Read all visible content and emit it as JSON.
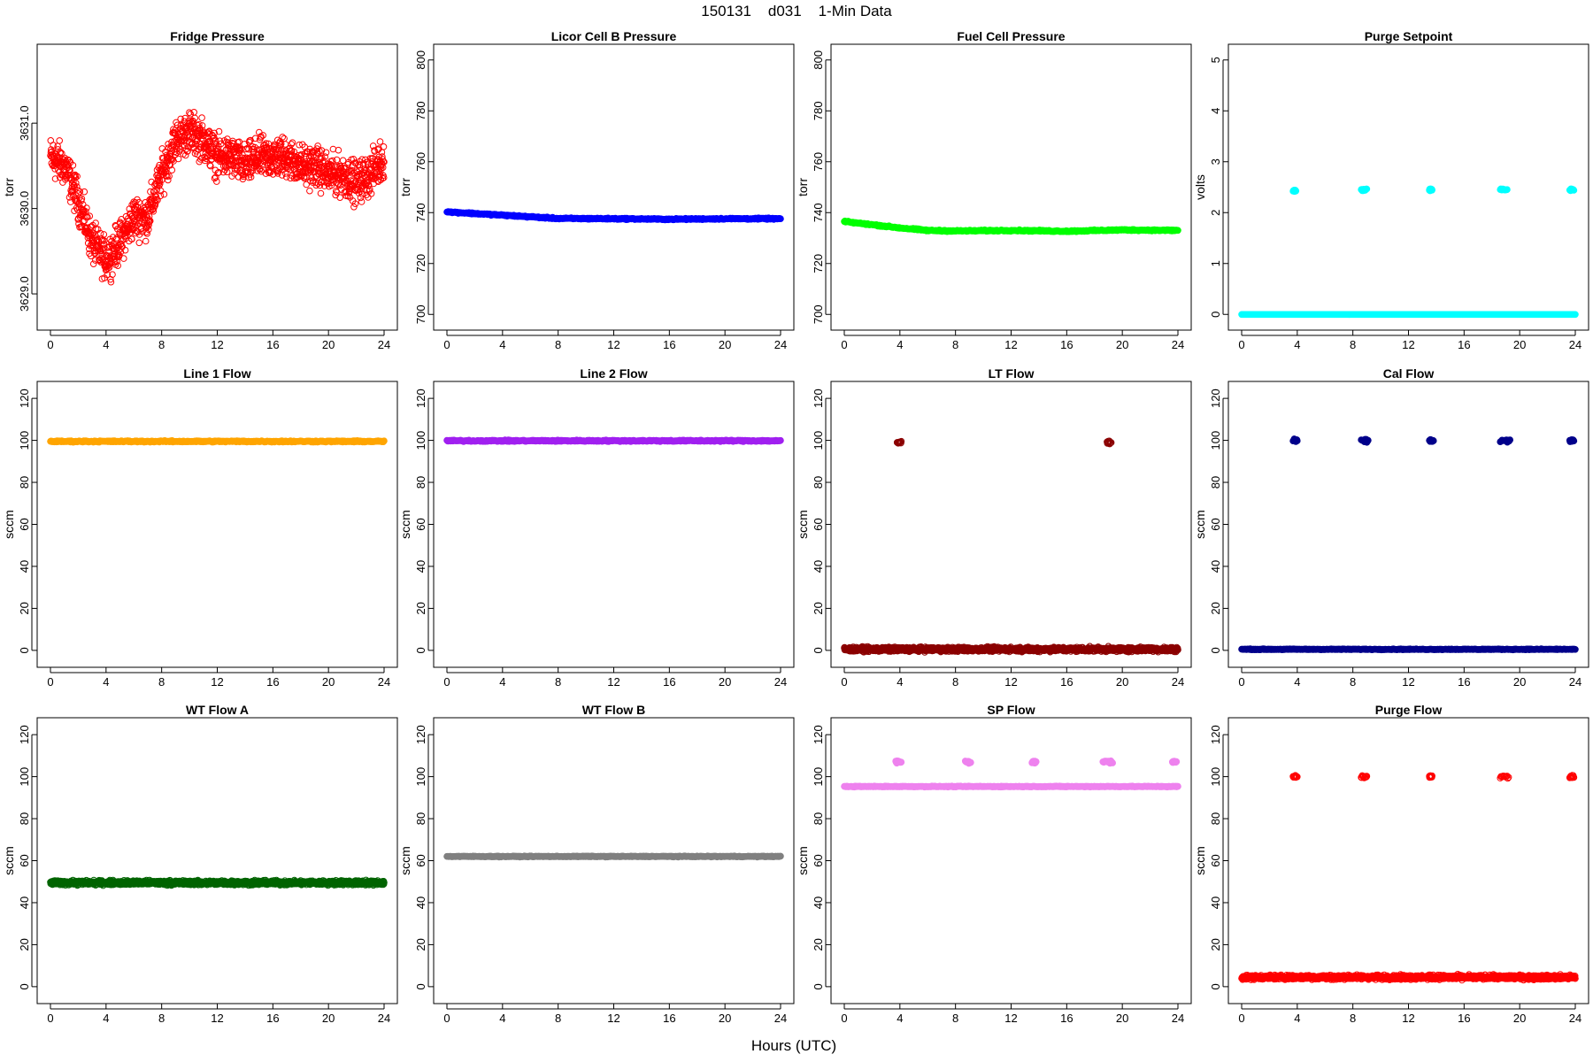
{
  "figure": {
    "title": "150131    d031    1-Min Data",
    "xlabel": "Hours (UTC)"
  },
  "chart_data": [
    {
      "id": "fridge-pressure",
      "type": "scatter",
      "title": "Fridge Pressure",
      "ylabel": "torr",
      "color": "#ff0000",
      "marker": "open-circle",
      "xlim": [
        0,
        24
      ],
      "ylim": [
        3628.7,
        3631.8
      ],
      "xticks": [
        0,
        4,
        8,
        12,
        16,
        20,
        24
      ],
      "yticks": [
        3629.0,
        3630.0,
        3631.0
      ],
      "ytick_labels": [
        "3629.0",
        "3630.0",
        "3631.0"
      ],
      "x": [
        0,
        1,
        2,
        3,
        4,
        5,
        6,
        7,
        8,
        9,
        10,
        11,
        12,
        13,
        14,
        15,
        16,
        17,
        18,
        19,
        20,
        21,
        22,
        23,
        24
      ],
      "y": [
        3630.6,
        3630.5,
        3630.1,
        3629.6,
        3629.4,
        3629.6,
        3629.9,
        3629.9,
        3630.4,
        3630.8,
        3630.9,
        3630.8,
        3630.6,
        3630.6,
        3630.5,
        3630.6,
        3630.6,
        3630.6,
        3630.5,
        3630.5,
        3630.4,
        3630.4,
        3630.3,
        3630.4,
        3630.6
      ],
      "spread": 0.35
    },
    {
      "id": "licor-cell-b-pressure",
      "type": "scatter",
      "title": "Licor Cell B Pressure",
      "ylabel": "torr",
      "color": "#0000ff",
      "marker": "filled-line",
      "xlim": [
        0,
        24
      ],
      "ylim": [
        698,
        802
      ],
      "xticks": [
        0,
        4,
        8,
        12,
        16,
        20,
        24
      ],
      "yticks": [
        700,
        720,
        740,
        760,
        780,
        800
      ],
      "ytick_labels": [
        "700",
        "720",
        "740",
        "760",
        "780",
        "800"
      ],
      "x": [
        0,
        4,
        8,
        12,
        16,
        20,
        24
      ],
      "y": [
        740.3,
        739.0,
        737.7,
        737.6,
        737.4,
        737.6,
        737.6
      ],
      "spread": 0.4
    },
    {
      "id": "fuel-cell-pressure",
      "type": "scatter",
      "title": "Fuel Cell Pressure",
      "ylabel": "torr",
      "color": "#00ff00",
      "marker": "filled-line",
      "xlim": [
        0,
        24
      ],
      "ylim": [
        698,
        802
      ],
      "xticks": [
        0,
        4,
        8,
        12,
        16,
        20,
        24
      ],
      "yticks": [
        700,
        720,
        740,
        760,
        780,
        800
      ],
      "ytick_labels": [
        "700",
        "720",
        "740",
        "760",
        "780",
        "800"
      ],
      "x": [
        0,
        4,
        6,
        8,
        12,
        16,
        20,
        24
      ],
      "y": [
        736.5,
        734.0,
        733.0,
        732.8,
        733.0,
        732.7,
        733.2,
        733.0
      ],
      "spread": 0.4
    },
    {
      "id": "purge-setpoint",
      "type": "scatter",
      "title": "Purge Setpoint",
      "ylabel": "volts",
      "color": "#00ffff",
      "marker": "filled-line",
      "xlim": [
        0,
        24
      ],
      "ylim": [
        -0.1,
        5.1
      ],
      "xticks": [
        0,
        4,
        8,
        12,
        16,
        20,
        24
      ],
      "yticks": [
        0,
        1,
        2,
        3,
        4,
        5
      ],
      "ytick_labels": [
        "0",
        "1",
        "2",
        "3",
        "4",
        "5"
      ],
      "x": [
        0,
        24
      ],
      "y": [
        0.0,
        0.0
      ],
      "spread": 0.0,
      "spikes": [
        [
          3.7,
          3.9,
          2.43
        ],
        [
          8.6,
          9.0,
          2.45
        ],
        [
          13.5,
          13.7,
          2.45
        ],
        [
          18.6,
          19.1,
          2.45
        ],
        [
          23.6,
          23.9,
          2.45
        ]
      ]
    },
    {
      "id": "line-1-flow",
      "type": "scatter",
      "title": "Line 1 Flow",
      "ylabel": "sccm",
      "color": "#ffa500",
      "marker": "filled-line",
      "xlim": [
        0,
        24
      ],
      "ylim": [
        -3,
        123
      ],
      "xticks": [
        0,
        4,
        8,
        12,
        16,
        20,
        24
      ],
      "yticks": [
        0,
        20,
        40,
        60,
        80,
        100,
        120
      ],
      "ytick_labels": [
        "0",
        "20",
        "40",
        "60",
        "80",
        "100",
        "120"
      ],
      "x": [
        0,
        24
      ],
      "y": [
        99.5,
        99.5
      ],
      "spread": 0.5
    },
    {
      "id": "line-2-flow",
      "type": "scatter",
      "title": "Line 2 Flow",
      "ylabel": "sccm",
      "color": "#a020f0",
      "marker": "filled-line",
      "xlim": [
        0,
        24
      ],
      "ylim": [
        -3,
        123
      ],
      "xticks": [
        0,
        4,
        8,
        12,
        16,
        20,
        24
      ],
      "yticks": [
        0,
        20,
        40,
        60,
        80,
        100,
        120
      ],
      "ytick_labels": [
        "0",
        "20",
        "40",
        "60",
        "80",
        "100",
        "120"
      ],
      "x": [
        0,
        24
      ],
      "y": [
        99.8,
        99.8
      ],
      "spread": 0.5
    },
    {
      "id": "lt-flow",
      "type": "scatter",
      "title": "LT Flow",
      "ylabel": "sccm",
      "color": "#8b0000",
      "marker": "open-circle",
      "xlim": [
        0,
        24
      ],
      "ylim": [
        -3,
        123
      ],
      "xticks": [
        0,
        4,
        8,
        12,
        16,
        20,
        24
      ],
      "yticks": [
        0,
        20,
        40,
        60,
        80,
        100,
        120
      ],
      "ytick_labels": [
        "0",
        "20",
        "40",
        "60",
        "80",
        "100",
        "120"
      ],
      "x": [
        0,
        24
      ],
      "y": [
        0.5,
        0.5
      ],
      "spread": 1.5,
      "spikes": [
        [
          3.8,
          4.1,
          99.0
        ],
        [
          18.9,
          19.2,
          99.0
        ]
      ]
    },
    {
      "id": "cal-flow",
      "type": "scatter",
      "title": "Cal Flow",
      "ylabel": "sccm",
      "color": "#00008b",
      "marker": "filled-line",
      "xlim": [
        0,
        24
      ],
      "ylim": [
        -3,
        123
      ],
      "xticks": [
        0,
        4,
        8,
        12,
        16,
        20,
        24
      ],
      "yticks": [
        0,
        20,
        40,
        60,
        80,
        100,
        120
      ],
      "ytick_labels": [
        "0",
        "20",
        "40",
        "60",
        "80",
        "100",
        "120"
      ],
      "x": [
        0,
        24
      ],
      "y": [
        0.5,
        0.5
      ],
      "spread": 0.3,
      "spikes": [
        [
          3.7,
          4.0,
          99.8
        ],
        [
          8.6,
          9.1,
          99.8
        ],
        [
          13.5,
          13.8,
          99.8
        ],
        [
          18.6,
          19.3,
          99.8
        ],
        [
          23.6,
          23.9,
          99.8
        ]
      ]
    },
    {
      "id": "wt-flow-a",
      "type": "scatter",
      "title": "WT Flow A",
      "ylabel": "sccm",
      "color": "#006400",
      "marker": "open-circle",
      "xlim": [
        0,
        24
      ],
      "ylim": [
        -3,
        123
      ],
      "xticks": [
        0,
        4,
        8,
        12,
        16,
        20,
        24
      ],
      "yticks": [
        0,
        20,
        40,
        60,
        80,
        100,
        120
      ],
      "ytick_labels": [
        "0",
        "20",
        "40",
        "60",
        "80",
        "100",
        "120"
      ],
      "x": [
        0,
        24
      ],
      "y": [
        49.5,
        49.5
      ],
      "spread": 1.5
    },
    {
      "id": "wt-flow-b",
      "type": "scatter",
      "title": "WT Flow B",
      "ylabel": "sccm",
      "color": "#808080",
      "marker": "filled-line",
      "xlim": [
        0,
        24
      ],
      "ylim": [
        -3,
        123
      ],
      "xticks": [
        0,
        4,
        8,
        12,
        16,
        20,
        24
      ],
      "yticks": [
        0,
        20,
        40,
        60,
        80,
        100,
        120
      ],
      "ytick_labels": [
        "0",
        "20",
        "40",
        "60",
        "80",
        "100",
        "120"
      ],
      "x": [
        0,
        24
      ],
      "y": [
        62.0,
        62.0
      ],
      "spread": 0.3
    },
    {
      "id": "sp-flow",
      "type": "scatter",
      "title": "SP Flow",
      "ylabel": "sccm",
      "color": "#ee82ee",
      "marker": "filled-line",
      "xlim": [
        0,
        24
      ],
      "ylim": [
        -3,
        123
      ],
      "xticks": [
        0,
        4,
        8,
        12,
        16,
        20,
        24
      ],
      "yticks": [
        0,
        20,
        40,
        60,
        80,
        100,
        120
      ],
      "ytick_labels": [
        "0",
        "20",
        "40",
        "60",
        "80",
        "100",
        "120"
      ],
      "x": [
        0,
        24
      ],
      "y": [
        95.3,
        95.3
      ],
      "spread": 0.3,
      "spikes": [
        [
          3.7,
          4.1,
          107.0
        ],
        [
          8.7,
          9.1,
          107.0
        ],
        [
          13.5,
          13.8,
          107.0
        ],
        [
          18.6,
          19.3,
          107.0
        ],
        [
          23.6,
          23.9,
          107.0
        ]
      ]
    },
    {
      "id": "purge-flow",
      "type": "scatter",
      "title": "Purge Flow",
      "ylabel": "sccm",
      "color": "#ff0000",
      "marker": "open-circle",
      "xlim": [
        0,
        24
      ],
      "ylim": [
        -3,
        123
      ],
      "xticks": [
        0,
        4,
        8,
        12,
        16,
        20,
        24
      ],
      "yticks": [
        0,
        20,
        40,
        60,
        80,
        100,
        120
      ],
      "ytick_labels": [
        "0",
        "20",
        "40",
        "60",
        "80",
        "100",
        "120"
      ],
      "x": [
        0,
        24
      ],
      "y": [
        4.5,
        4.5
      ],
      "spread": 1.5,
      "spikes": [
        [
          3.7,
          4.0,
          100.0
        ],
        [
          8.6,
          9.0,
          100.0
        ],
        [
          13.5,
          13.7,
          100.0
        ],
        [
          18.6,
          19.2,
          100.0
        ],
        [
          23.6,
          23.9,
          100.0
        ]
      ]
    }
  ]
}
